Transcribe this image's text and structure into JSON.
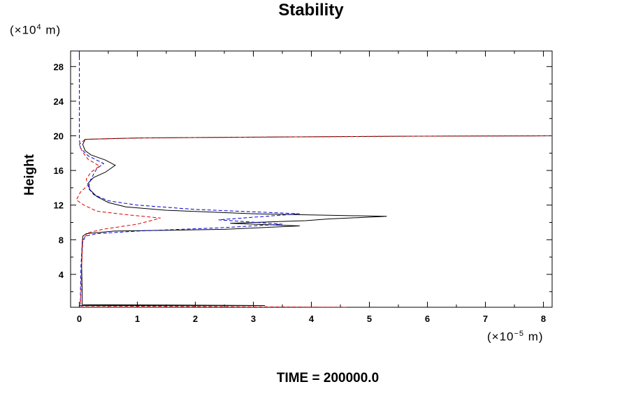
{
  "chart_data": {
    "type": "line",
    "title": "Stability",
    "ylabel": "Height",
    "y_unit_prefix": "(×10",
    "y_unit_exp": "4",
    "y_unit_suffix": " m)",
    "x_unit_prefix": "(×10",
    "x_unit_exp": "−5",
    "x_unit_suffix": " m)",
    "xlim": [
      -0.15,
      8.15
    ],
    "ylim": [
      0.2,
      29.8
    ],
    "x_ticks": [
      0,
      1,
      2,
      3,
      4,
      5,
      6,
      7,
      8
    ],
    "x_tick_labels": [
      "0",
      "1",
      "2",
      "3",
      "4",
      "5",
      "6",
      "7",
      "8"
    ],
    "y_ticks": [
      4,
      8,
      12,
      16,
      20,
      24,
      28
    ],
    "y_tick_labels": [
      "4",
      "8",
      "12",
      "16",
      "20",
      "24",
      "28"
    ],
    "series": [
      {
        "style": "solid",
        "color": "#000000",
        "points": [
          [
            0.0,
            0.2
          ],
          [
            0.0,
            0.4
          ],
          [
            1.2,
            0.4
          ],
          [
            3.2,
            0.4
          ],
          [
            0.05,
            0.5
          ],
          [
            0.05,
            2.0
          ],
          [
            0.04,
            5.0
          ],
          [
            0.05,
            7.5
          ],
          [
            0.06,
            8.4
          ],
          [
            0.12,
            8.7
          ],
          [
            0.6,
            9.0
          ],
          [
            2.5,
            9.2
          ],
          [
            3.8,
            9.6
          ],
          [
            2.6,
            9.9
          ],
          [
            3.9,
            10.2
          ],
          [
            4.3,
            10.4
          ],
          [
            5.3,
            10.7
          ],
          [
            3.0,
            11.0
          ],
          [
            1.5,
            11.4
          ],
          [
            0.8,
            11.8
          ],
          [
            0.5,
            12.3
          ],
          [
            0.3,
            13.0
          ],
          [
            0.18,
            13.8
          ],
          [
            0.16,
            14.6
          ],
          [
            0.25,
            15.2
          ],
          [
            0.45,
            15.8
          ],
          [
            0.62,
            16.6
          ],
          [
            0.45,
            17.2
          ],
          [
            0.2,
            17.8
          ],
          [
            0.1,
            18.3
          ],
          [
            0.06,
            19.0
          ],
          [
            0.1,
            19.6
          ],
          [
            1.0,
            19.75
          ],
          [
            3.0,
            19.85
          ],
          [
            5.5,
            19.95
          ],
          [
            8.15,
            20.0
          ]
        ]
      },
      {
        "style": "dashed",
        "color": "#0000cc",
        "points": [
          [
            0.0,
            29.8
          ],
          [
            0.0,
            19.6
          ],
          [
            0.02,
            18.6
          ],
          [
            0.15,
            17.7
          ],
          [
            0.42,
            16.8
          ],
          [
            0.3,
            16.2
          ],
          [
            0.2,
            15.0
          ],
          [
            0.15,
            14.0
          ],
          [
            0.25,
            13.2
          ],
          [
            0.5,
            12.5
          ],
          [
            1.0,
            12.0
          ],
          [
            2.0,
            11.5
          ],
          [
            3.8,
            11.0
          ],
          [
            2.4,
            10.3
          ],
          [
            3.5,
            9.8
          ],
          [
            2.5,
            9.4
          ],
          [
            1.0,
            9.0
          ],
          [
            0.3,
            8.7
          ],
          [
            0.1,
            8.4
          ],
          [
            0.05,
            7.5
          ],
          [
            0.03,
            5.0
          ],
          [
            0.02,
            2.0
          ],
          [
            0.02,
            0.5
          ]
        ]
      },
      {
        "style": "dashed",
        "color": "#dd0000",
        "points": [
          [
            4.6,
            0.2
          ],
          [
            0.02,
            0.35
          ],
          [
            0.02,
            0.5
          ],
          [
            0.03,
            2.0
          ],
          [
            0.04,
            5.0
          ],
          [
            0.06,
            8.0
          ],
          [
            0.15,
            8.8
          ],
          [
            0.4,
            9.2
          ],
          [
            1.0,
            9.8
          ],
          [
            1.4,
            10.5
          ],
          [
            0.8,
            10.9
          ],
          [
            0.3,
            11.3
          ],
          [
            0.08,
            12.0
          ],
          [
            -0.05,
            12.6
          ],
          [
            0.02,
            13.5
          ],
          [
            0.15,
            14.3
          ],
          [
            0.12,
            15.0
          ],
          [
            0.2,
            15.8
          ],
          [
            0.35,
            16.5
          ],
          [
            0.15,
            17.3
          ],
          [
            0.05,
            18.2
          ],
          [
            0.0,
            19.0
          ],
          [
            0.1,
            19.6
          ],
          [
            1.0,
            19.75
          ],
          [
            3.0,
            19.85
          ],
          [
            5.5,
            19.95
          ],
          [
            8.15,
            20.0
          ]
        ]
      }
    ]
  },
  "footer": {
    "label": "TIME = ",
    "value": "200000.0"
  }
}
